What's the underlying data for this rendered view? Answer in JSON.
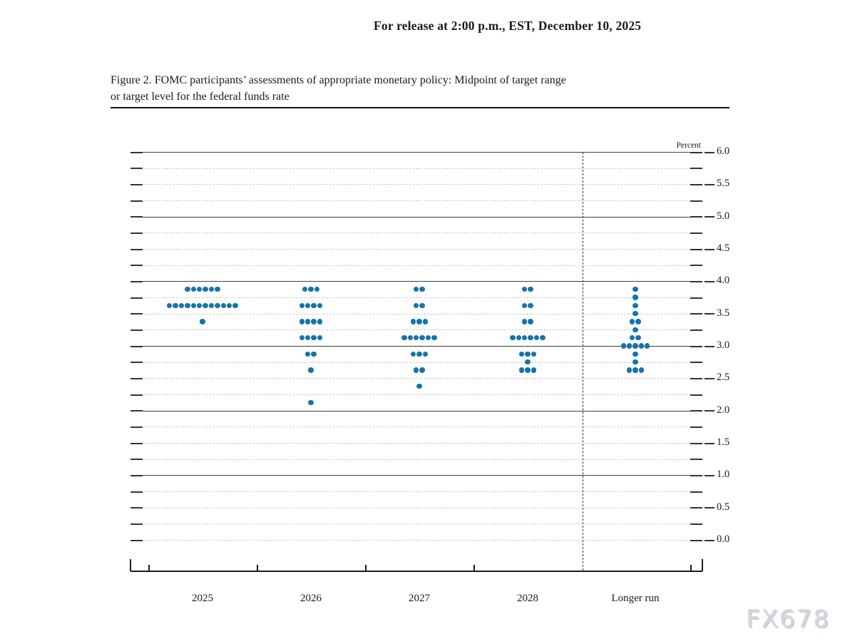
{
  "page": {
    "release_note": "For release at 2:00 p.m., EST, December 10, 2025",
    "watermark": "FX678"
  },
  "figure": {
    "title_line1": "Figure 2. FOMC participants’ assessments of appropriate monetary policy: Midpoint of target range",
    "title_line2": "or target level for the federal funds rate"
  },
  "chart_data": {
    "type": "scatter",
    "variant": "fomc-dot-plot",
    "title": "FOMC participants' assessments of appropriate monetary policy: Midpoint of target range or target level for the federal funds rate",
    "unit_label": "Percent",
    "ylim": [
      0.0,
      6.0
    ],
    "y_label_step": 0.5,
    "gridline_step": 0.25,
    "solid_gridlines": [
      6.0,
      5.0,
      4.0,
      3.0,
      2.0,
      1.0
    ],
    "y_tick_labels": [
      "6.0",
      "5.5",
      "5.0",
      "4.5",
      "4.0",
      "3.5",
      "3.0",
      "2.5",
      "2.0",
      "1.5",
      "1.0",
      "0.5",
      "0.0"
    ],
    "categories": [
      "2025",
      "2026",
      "2027",
      "2028",
      "Longer run"
    ],
    "separator_after_category": "2028",
    "grid": true,
    "legend": null,
    "dot_color": "#1673a8",
    "participants_per_year": 19,
    "series": [
      {
        "category": "2025",
        "points": [
          {
            "rate": 3.875,
            "count": 6
          },
          {
            "rate": 3.625,
            "count": 12
          },
          {
            "rate": 3.375,
            "count": 1
          }
        ]
      },
      {
        "category": "2026",
        "points": [
          {
            "rate": 3.875,
            "count": 3
          },
          {
            "rate": 3.625,
            "count": 4
          },
          {
            "rate": 3.375,
            "count": 4
          },
          {
            "rate": 3.125,
            "count": 4
          },
          {
            "rate": 2.875,
            "count": 2
          },
          {
            "rate": 2.625,
            "count": 1
          },
          {
            "rate": 2.125,
            "count": 1
          }
        ]
      },
      {
        "category": "2027",
        "points": [
          {
            "rate": 3.875,
            "count": 2
          },
          {
            "rate": 3.625,
            "count": 2
          },
          {
            "rate": 3.375,
            "count": 3
          },
          {
            "rate": 3.125,
            "count": 6
          },
          {
            "rate": 2.875,
            "count": 3
          },
          {
            "rate": 2.625,
            "count": 2
          },
          {
            "rate": 2.375,
            "count": 1
          }
        ]
      },
      {
        "category": "2028",
        "points": [
          {
            "rate": 3.875,
            "count": 2
          },
          {
            "rate": 3.625,
            "count": 2
          },
          {
            "rate": 3.375,
            "count": 2
          },
          {
            "rate": 3.125,
            "count": 6
          },
          {
            "rate": 2.875,
            "count": 3
          },
          {
            "rate": 2.75,
            "count": 1
          },
          {
            "rate": 2.625,
            "count": 3
          }
        ]
      },
      {
        "category": "Longer run",
        "points": [
          {
            "rate": 3.875,
            "count": 1
          },
          {
            "rate": 3.75,
            "count": 1
          },
          {
            "rate": 3.625,
            "count": 1
          },
          {
            "rate": 3.5,
            "count": 1
          },
          {
            "rate": 3.375,
            "count": 2
          },
          {
            "rate": 3.25,
            "count": 1
          },
          {
            "rate": 3.125,
            "count": 2
          },
          {
            "rate": 3.0,
            "count": 5
          },
          {
            "rate": 2.875,
            "count": 1
          },
          {
            "rate": 2.75,
            "count": 1
          },
          {
            "rate": 2.625,
            "count": 3
          }
        ]
      }
    ]
  }
}
